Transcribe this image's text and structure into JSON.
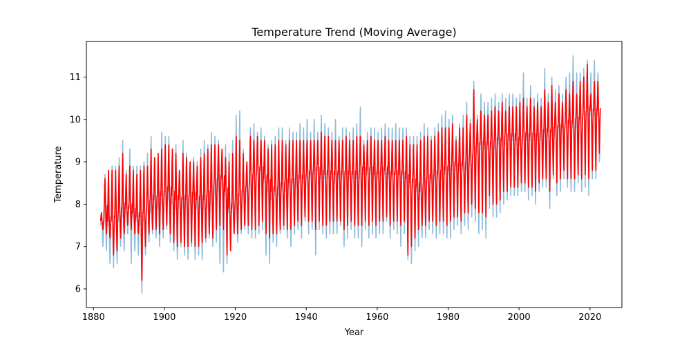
{
  "chart_data": {
    "type": "line",
    "title": "Temperature Trend (Moving Average)",
    "xlabel": "Year",
    "ylabel": "Temperature",
    "xlim": [
      1878,
      2029
    ],
    "ylim": [
      5.56,
      11.84
    ],
    "xticks": [
      1880,
      1900,
      1920,
      1940,
      1960,
      1980,
      2000,
      2020
    ],
    "yticks": [
      6,
      7,
      8,
      9,
      10,
      11
    ],
    "grid": false,
    "legend": "none",
    "series": [
      {
        "role": "raw",
        "color": "#1f77b4",
        "opacity": 0.5,
        "x_start": 1882,
        "x_end": 2022,
        "samples_per_year": 12,
        "yearly_mean": [
          7.5,
          7.6,
          7.5,
          7.6,
          7.7,
          7.6,
          7.7,
          7.8,
          7.9,
          7.7,
          7.6,
          7.5,
          7.6,
          7.8,
          7.8,
          7.9,
          7.9,
          8.0,
          8.1,
          8.1,
          8.0,
          7.9,
          7.9,
          7.9,
          7.9,
          8.0,
          8.0,
          7.9,
          7.9,
          7.9,
          7.9,
          8.0,
          8.2,
          8.3,
          8.4,
          8.2,
          7.8,
          7.8,
          7.9,
          8.0,
          8.1,
          8.3,
          8.5,
          8.6,
          8.7,
          8.8,
          8.5,
          8.3,
          8.1,
          8.2,
          8.2,
          8.3,
          8.3,
          8.4,
          8.4,
          8.4,
          8.5,
          8.5,
          8.6,
          8.6,
          8.7,
          8.7,
          8.6,
          8.6,
          8.6,
          8.6,
          8.5,
          8.6,
          8.6,
          8.6,
          8.6,
          8.6,
          8.6,
          8.6,
          8.7,
          8.7,
          8.7,
          8.6,
          8.6,
          8.7,
          8.7,
          8.6,
          8.6,
          8.7,
          8.7,
          8.6,
          8.5,
          8.4,
          8.4,
          8.3,
          8.1,
          8.3,
          8.5,
          8.5,
          8.6,
          8.6,
          8.6,
          8.7,
          8.7,
          8.8,
          8.8,
          8.8,
          8.8,
          8.8,
          8.9,
          9.1,
          9.2,
          9.3,
          9.3,
          9.3,
          9.3,
          9.3,
          9.4,
          9.4,
          9.4,
          9.5,
          9.5,
          9.4,
          9.4,
          9.5,
          9.5,
          9.5,
          9.5,
          9.5,
          9.5,
          9.6,
          9.6,
          9.6,
          9.6,
          9.7,
          9.7,
          9.8,
          9.8,
          9.8,
          9.8,
          9.9,
          10.0,
          10.1,
          10.1,
          10.1,
          10.1
        ],
        "yearly_high": [
          7.8,
          8.7,
          8.8,
          8.9,
          8.9,
          9.1,
          9.5,
          8.8,
          9.3,
          8.9,
          8.9,
          8.9,
          9.0,
          9.2,
          9.6,
          9.1,
          9.2,
          9.7,
          9.6,
          9.6,
          9.3,
          9.4,
          8.8,
          9.5,
          9.2,
          9.0,
          9.1,
          9.0,
          9.3,
          9.5,
          9.4,
          9.7,
          9.6,
          9.5,
          9.3,
          9.4,
          9.2,
          9.5,
          10.1,
          10.2,
          9.3,
          9.0,
          9.8,
          9.9,
          9.7,
          9.8,
          9.6,
          9.4,
          9.5,
          9.6,
          9.8,
          9.8,
          9.5,
          9.8,
          9.7,
          9.7,
          9.9,
          9.8,
          10.0,
          9.7,
          10.0,
          9.7,
          10.1,
          9.9,
          9.8,
          9.7,
          10.0,
          9.6,
          9.8,
          9.8,
          9.7,
          9.8,
          9.9,
          10.3,
          9.5,
          9.7,
          9.8,
          9.8,
          9.7,
          9.8,
          9.9,
          9.8,
          9.8,
          9.9,
          9.8,
          9.8,
          9.8,
          9.6,
          9.6,
          9.6,
          9.7,
          9.9,
          9.8,
          9.6,
          9.8,
          9.9,
          10.1,
          10.2,
          10.0,
          10.1,
          9.6,
          9.9,
          10.1,
          10.4,
          10.0,
          10.9,
          10.1,
          10.6,
          10.4,
          10.4,
          10.5,
          10.6,
          10.4,
          10.6,
          10.5,
          10.6,
          10.6,
          10.5,
          10.6,
          11.1,
          10.5,
          10.8,
          10.5,
          10.6,
          10.5,
          11.2,
          10.6,
          11.0,
          10.7,
          10.8,
          10.6,
          11.0,
          11.1,
          11.5,
          11.1,
          11.1,
          11.2,
          11.4,
          11.1,
          11.4,
          11.1
        ],
        "yearly_low": [
          7.0,
          6.9,
          6.6,
          6.5,
          6.6,
          7.0,
          6.9,
          7.3,
          6.6,
          6.9,
          6.8,
          5.9,
          6.8,
          7.1,
          7.3,
          7.2,
          7.0,
          7.2,
          7.4,
          7.1,
          6.9,
          6.7,
          7.0,
          6.8,
          6.7,
          7.0,
          6.7,
          6.8,
          6.7,
          7.1,
          7.2,
          7.0,
          7.1,
          6.6,
          6.4,
          6.6,
          7.3,
          7.3,
          7.1,
          7.3,
          7.4,
          7.3,
          7.2,
          7.2,
          7.3,
          7.4,
          6.8,
          6.6,
          7.1,
          7.0,
          7.3,
          7.4,
          7.2,
          7.0,
          7.3,
          7.4,
          7.2,
          7.6,
          7.3,
          7.4,
          6.8,
          7.4,
          7.3,
          7.2,
          7.3,
          7.3,
          7.3,
          7.5,
          7.0,
          7.2,
          7.4,
          7.2,
          7.2,
          7.0,
          7.4,
          7.2,
          7.3,
          7.2,
          7.3,
          7.3,
          7.6,
          7.2,
          7.4,
          7.3,
          7.0,
          7.3,
          6.7,
          6.6,
          6.9,
          7.0,
          7.2,
          7.2,
          7.4,
          7.3,
          7.2,
          7.3,
          7.3,
          7.2,
          7.2,
          7.4,
          7.5,
          7.3,
          7.5,
          7.4,
          7.7,
          7.6,
          7.3,
          7.4,
          7.2,
          7.9,
          7.7,
          7.7,
          7.8,
          8.0,
          8.1,
          8.2,
          8.2,
          8.2,
          8.3,
          8.3,
          8.1,
          8.2,
          8.0,
          8.3,
          8.4,
          8.4,
          7.9,
          8.6,
          8.2,
          8.3,
          8.6,
          8.4,
          8.3,
          8.3,
          8.5,
          8.3,
          8.4,
          8.2,
          8.6,
          8.6,
          9.0
        ]
      },
      {
        "role": "moving_average",
        "color": "#ff0000",
        "x_start": 1882,
        "x_end": 2022,
        "samples_per_year": 12,
        "yearly_mean": [
          7.6,
          7.9,
          7.6,
          7.6,
          7.7,
          7.8,
          7.9,
          7.9,
          7.9,
          7.8,
          7.7,
          7.7,
          7.8,
          8.0,
          8.1,
          8.1,
          8.2,
          8.2,
          8.3,
          8.3,
          8.2,
          8.1,
          8.1,
          8.1,
          8.1,
          8.2,
          8.2,
          8.1,
          8.1,
          8.1,
          8.2,
          8.3,
          8.5,
          8.6,
          8.6,
          8.3,
          7.9,
          7.9,
          8.1,
          8.2,
          8.3,
          8.4,
          8.6,
          8.7,
          8.8,
          8.8,
          8.6,
          8.5,
          8.3,
          8.3,
          8.4,
          8.4,
          8.5,
          8.5,
          8.5,
          8.6,
          8.6,
          8.6,
          8.7,
          8.7,
          8.8,
          8.8,
          8.7,
          8.7,
          8.7,
          8.7,
          8.7,
          8.7,
          8.7,
          8.7,
          8.7,
          8.7,
          8.7,
          8.8,
          8.8,
          8.8,
          8.8,
          8.7,
          8.7,
          8.8,
          8.8,
          8.7,
          8.7,
          8.7,
          8.7,
          8.7,
          8.6,
          8.5,
          8.5,
          8.4,
          8.3,
          8.5,
          8.6,
          8.6,
          8.7,
          8.7,
          8.8,
          8.8,
          8.8,
          8.9,
          8.9,
          8.9,
          8.9,
          9.0,
          9.1,
          9.2,
          9.4,
          9.4,
          9.4,
          9.4,
          9.4,
          9.5,
          9.5,
          9.5,
          9.6,
          9.6,
          9.6,
          9.5,
          9.5,
          9.6,
          9.6,
          9.6,
          9.6,
          9.6,
          9.7,
          9.7,
          9.7,
          9.7,
          9.8,
          9.8,
          9.8,
          9.9,
          9.9,
          9.9,
          10.0,
          10.0,
          10.1,
          10.2,
          10.2,
          10.2,
          10.2
        ],
        "yearly_high": [
          7.8,
          8.6,
          8.8,
          8.8,
          8.8,
          8.9,
          9.2,
          8.7,
          8.9,
          8.8,
          8.7,
          8.8,
          8.9,
          8.9,
          9.3,
          9.1,
          9.2,
          9.3,
          9.4,
          9.4,
          9.3,
          9.2,
          8.8,
          9.2,
          9.1,
          9.0,
          9.0,
          8.9,
          9.1,
          9.2,
          9.3,
          9.4,
          9.4,
          9.4,
          9.3,
          9.1,
          9.0,
          9.2,
          9.6,
          9.5,
          9.2,
          9.0,
          9.6,
          9.5,
          9.6,
          9.5,
          9.5,
          9.3,
          9.4,
          9.4,
          9.5,
          9.5,
          9.4,
          9.5,
          9.5,
          9.5,
          9.5,
          9.5,
          9.5,
          9.5,
          9.5,
          9.5,
          9.7,
          9.6,
          9.6,
          9.5,
          9.5,
          9.5,
          9.5,
          9.6,
          9.5,
          9.5,
          9.6,
          9.6,
          9.4,
          9.5,
          9.6,
          9.5,
          9.5,
          9.5,
          9.6,
          9.5,
          9.5,
          9.5,
          9.5,
          9.5,
          9.6,
          9.4,
          9.4,
          9.4,
          9.5,
          9.6,
          9.6,
          9.5,
          9.6,
          9.7,
          9.8,
          9.8,
          9.8,
          9.9,
          9.5,
          9.8,
          9.8,
          10.1,
          9.9,
          10.7,
          10.0,
          10.2,
          10.1,
          10.1,
          10.2,
          10.3,
          10.2,
          10.4,
          10.2,
          10.3,
          10.3,
          10.3,
          10.4,
          10.5,
          10.3,
          10.5,
          10.3,
          10.4,
          10.3,
          10.7,
          10.4,
          10.8,
          10.4,
          10.6,
          10.4,
          10.7,
          10.6,
          10.9,
          10.6,
          10.9,
          11.0,
          11.3,
          10.6,
          10.9,
          10.9
        ],
        "yearly_low": [
          7.4,
          7.3,
          7.2,
          6.8,
          6.9,
          7.2,
          7.3,
          7.5,
          7.4,
          7.3,
          7.3,
          6.2,
          7.0,
          7.3,
          7.4,
          7.4,
          7.3,
          7.4,
          7.5,
          7.3,
          7.1,
          7.0,
          7.1,
          7.0,
          7.0,
          7.1,
          7.0,
          7.0,
          7.1,
          7.2,
          7.3,
          7.2,
          7.4,
          7.5,
          7.4,
          6.8,
          6.9,
          7.3,
          7.3,
          7.4,
          7.5,
          7.5,
          7.4,
          7.4,
          7.5,
          7.6,
          7.3,
          7.2,
          7.3,
          7.3,
          7.4,
          7.5,
          7.4,
          7.4,
          7.5,
          7.6,
          7.5,
          7.7,
          7.6,
          7.6,
          7.4,
          7.6,
          7.5,
          7.5,
          7.6,
          7.6,
          7.6,
          7.6,
          7.4,
          7.5,
          7.6,
          7.5,
          7.5,
          7.5,
          7.6,
          7.5,
          7.6,
          7.5,
          7.6,
          7.6,
          7.7,
          7.5,
          7.6,
          7.6,
          7.5,
          7.6,
          6.8,
          7.0,
          7.2,
          7.4,
          7.5,
          7.5,
          7.6,
          7.6,
          7.5,
          7.6,
          7.6,
          7.5,
          7.6,
          7.7,
          7.7,
          7.6,
          7.8,
          7.8,
          8.0,
          7.9,
          7.8,
          7.8,
          7.7,
          8.2,
          8.0,
          8.0,
          8.1,
          8.3,
          8.3,
          8.4,
          8.4,
          8.4,
          8.5,
          8.5,
          8.4,
          8.4,
          8.3,
          8.5,
          8.6,
          8.6,
          8.3,
          8.7,
          8.5,
          8.6,
          8.8,
          8.6,
          8.6,
          8.6,
          8.7,
          8.6,
          8.7,
          8.6,
          8.8,
          8.8,
          9.2
        ]
      }
    ]
  }
}
